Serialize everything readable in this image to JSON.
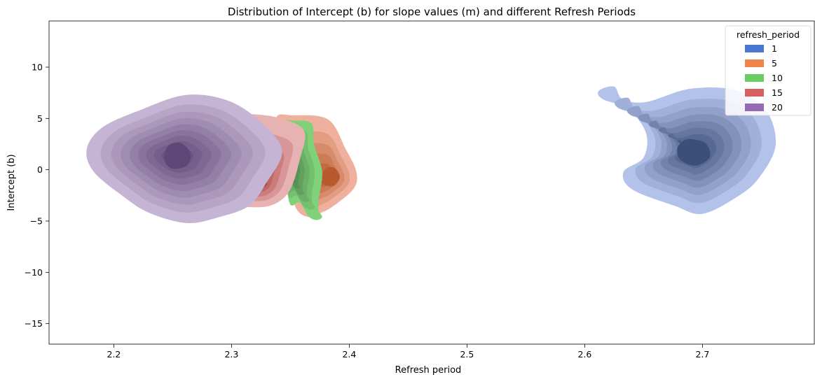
{
  "chart_data": {
    "type": "kde_contour",
    "title": "Distribution of Intercept (b) for slope values (m) and different Refresh Periods",
    "xlabel": "Refresh period",
    "ylabel": "Intercept (b)",
    "xlim": [
      2.145,
      2.795
    ],
    "ylim": [
      -17,
      14.5
    ],
    "xticks": [
      {
        "value": 2.2,
        "label": "2.2"
      },
      {
        "value": 2.3,
        "label": "2.3"
      },
      {
        "value": 2.4,
        "label": "2.4"
      },
      {
        "value": 2.5,
        "label": "2.5"
      },
      {
        "value": 2.6,
        "label": "2.6"
      },
      {
        "value": 2.7,
        "label": "2.7"
      }
    ],
    "yticks": [
      {
        "value": 10,
        "label": "10"
      },
      {
        "value": 5,
        "label": "5"
      },
      {
        "value": 0,
        "label": "0"
      },
      {
        "value": -5,
        "label": "−5"
      },
      {
        "value": -10,
        "label": "−10"
      },
      {
        "value": -15,
        "label": "−15"
      }
    ],
    "legend": {
      "title": "refresh_period",
      "position": "top-right",
      "entries": [
        {
          "label": "1",
          "color": "#4878d0"
        },
        {
          "label": "5",
          "color": "#ee854a"
        },
        {
          "label": "10",
          "color": "#6acc64"
        },
        {
          "label": "15",
          "color": "#d65f5f"
        },
        {
          "label": "20",
          "color": "#956cb4"
        }
      ]
    },
    "series": [
      {
        "name": "1",
        "color": "#4878d0",
        "light": "#b3c2e9",
        "dark": "#3c4f78",
        "center": [
          2.693,
          1.8
        ],
        "levels": 9,
        "outline": [
          [
            2.612,
            7.7
          ],
          [
            2.625,
            8.1
          ],
          [
            2.632,
            6.9
          ],
          [
            2.652,
            6.6
          ],
          [
            2.69,
            7.9
          ],
          [
            2.73,
            7.7
          ],
          [
            2.755,
            5.6
          ],
          [
            2.762,
            2.3
          ],
          [
            2.748,
            -0.8
          ],
          [
            2.73,
            -2.6
          ],
          [
            2.7,
            -4.3
          ],
          [
            2.676,
            -3.5
          ],
          [
            2.64,
            -1.9
          ],
          [
            2.633,
            -0.2
          ],
          [
            2.65,
            1.2
          ],
          [
            2.652,
            3.6
          ],
          [
            2.637,
            5.9
          ],
          [
            2.615,
            6.9
          ]
        ],
        "core": [
          [
            2.681,
            1.0
          ],
          [
            2.694,
            0.4
          ],
          [
            2.706,
            1.2
          ],
          [
            2.703,
            2.5
          ],
          [
            2.688,
            3.0
          ],
          [
            2.679,
            2.2
          ]
        ]
      },
      {
        "name": "5",
        "color": "#ee854a",
        "light": "#efb19d",
        "dark": "#b95a2e",
        "center": [
          2.382,
          -0.8
        ],
        "levels": 6,
        "outline": [
          [
            2.338,
            5.0
          ],
          [
            2.352,
            5.3
          ],
          [
            2.382,
            4.9
          ],
          [
            2.397,
            2.0
          ],
          [
            2.406,
            -0.2
          ],
          [
            2.404,
            -1.8
          ],
          [
            2.387,
            -3.5
          ],
          [
            2.376,
            -4.2
          ],
          [
            2.365,
            -4.6
          ],
          [
            2.355,
            -3.8
          ],
          [
            2.35,
            -1.5
          ],
          [
            2.345,
            1.5
          ]
        ],
        "core": [
          [
            2.376,
            -1.2
          ],
          [
            2.386,
            -1.6
          ],
          [
            2.392,
            -0.7
          ],
          [
            2.387,
            0.2
          ],
          [
            2.379,
            0.0
          ]
        ]
      },
      {
        "name": "10",
        "color": "#6acc64",
        "light": "#7fd27a",
        "dark": "#3e6a3b",
        "center": [
          2.345,
          0.3
        ],
        "levels": 8,
        "outline": [
          [
            2.33,
            4.7
          ],
          [
            2.352,
            4.8
          ],
          [
            2.368,
            4.5
          ],
          [
            2.37,
            2.5
          ],
          [
            2.377,
            -0.2
          ],
          [
            2.374,
            -2.9
          ],
          [
            2.374,
            -4.0
          ],
          [
            2.377,
            -4.6
          ],
          [
            2.372,
            -4.9
          ],
          [
            2.365,
            -4.5
          ],
          [
            2.358,
            -3.2
          ],
          [
            2.35,
            -3.4
          ],
          [
            2.345,
            -1.0
          ],
          [
            2.335,
            1.5
          ]
        ],
        "core": [
          [
            2.338,
            0.3
          ],
          [
            2.345,
            -0.5
          ],
          [
            2.352,
            -0.1
          ],
          [
            2.352,
            1.0
          ],
          [
            2.344,
            1.4
          ],
          [
            2.338,
            0.9
          ]
        ]
      },
      {
        "name": "15",
        "color": "#d65f5f",
        "light": "#e7b2b2",
        "dark": "#a83a3a",
        "center": [
          2.322,
          -1.3
        ],
        "levels": 6,
        "outline": [
          [
            2.303,
            5.1
          ],
          [
            2.32,
            5.4
          ],
          [
            2.345,
            4.9
          ],
          [
            2.362,
            3.7
          ],
          [
            2.358,
            1.0
          ],
          [
            2.349,
            -2.1
          ],
          [
            2.333,
            -3.5
          ],
          [
            2.31,
            -3.6
          ],
          [
            2.29,
            -3.2
          ],
          [
            2.268,
            -2.0
          ],
          [
            2.27,
            0.5
          ],
          [
            2.28,
            2.3
          ]
        ],
        "core": [
          [
            2.315,
            -1.3
          ],
          [
            2.322,
            -2.0
          ],
          [
            2.33,
            -1.4
          ],
          [
            2.326,
            -0.6
          ],
          [
            2.318,
            -0.6
          ]
        ]
      },
      {
        "name": "20",
        "color": "#956cb4",
        "light": "#c5b4d3",
        "dark": "#5f4877",
        "center": [
          2.253,
          1.3
        ],
        "levels": 10,
        "outline": [
          [
            2.19,
            4.1
          ],
          [
            2.222,
            5.8
          ],
          [
            2.262,
            7.3
          ],
          [
            2.3,
            6.6
          ],
          [
            2.33,
            4.1
          ],
          [
            2.343,
            1.7
          ],
          [
            2.33,
            -1.2
          ],
          [
            2.315,
            -3.5
          ],
          [
            2.29,
            -4.6
          ],
          [
            2.262,
            -5.2
          ],
          [
            2.23,
            -4.2
          ],
          [
            2.208,
            -2.6
          ],
          [
            2.183,
            -0.2
          ],
          [
            2.177,
            2.0
          ]
        ],
        "core": [
          [
            2.243,
            0.9
          ],
          [
            2.25,
            0.1
          ],
          [
            2.262,
            0.4
          ],
          [
            2.265,
            1.6
          ],
          [
            2.257,
            2.6
          ],
          [
            2.246,
            2.3
          ]
        ]
      }
    ]
  }
}
